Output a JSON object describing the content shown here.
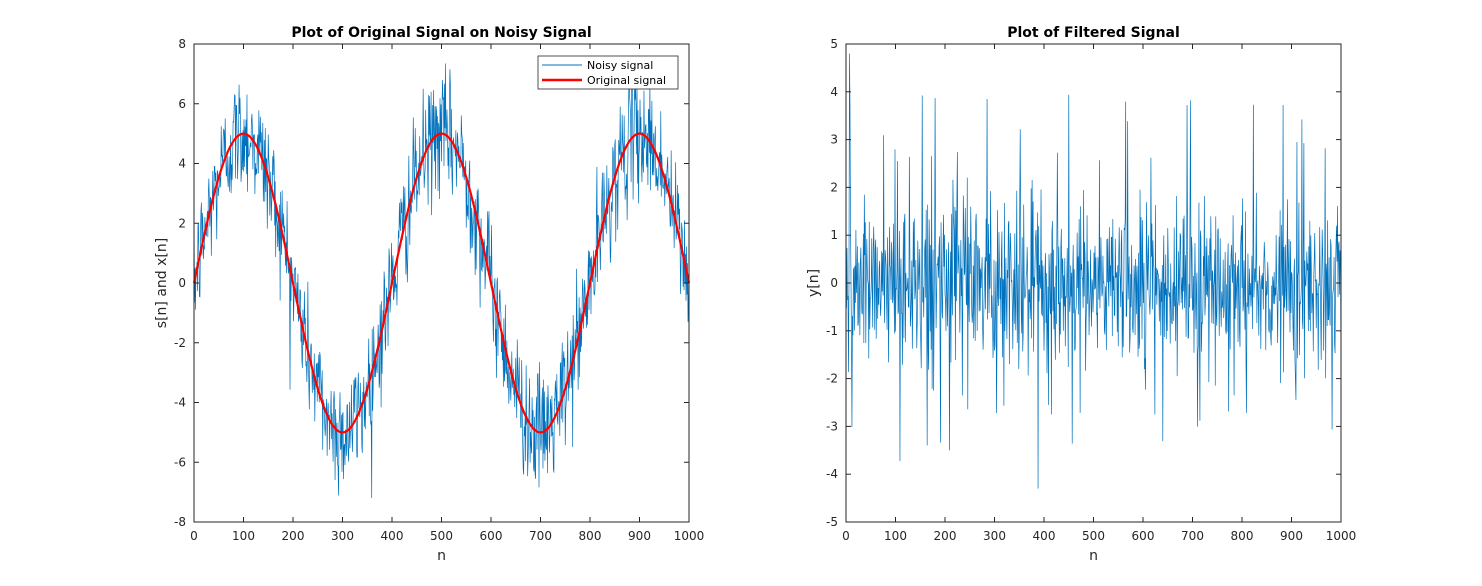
{
  "chart_data": [
    {
      "type": "line",
      "title": "Plot of Original Signal on Noisy Signal",
      "xlabel": "n",
      "ylabel": "s[n] and x[n]",
      "xlim": [
        0,
        1000
      ],
      "ylim": [
        -8,
        8
      ],
      "xticks": [
        0,
        100,
        200,
        300,
        400,
        500,
        600,
        700,
        800,
        900,
        1000
      ],
      "yticks": [
        -8,
        -6,
        -4,
        -2,
        0,
        2,
        4,
        6,
        8
      ],
      "legend_position": "top-right",
      "series": [
        {
          "name": "Noisy signal",
          "color": "#0072BD",
          "description": "sinusoid of amplitude 5 and period 400 samples with added noise of roughly +/-2.5",
          "amplitude": 5,
          "period": 400,
          "noise_spread": 2.5,
          "n_points": 1001
        },
        {
          "name": "Original signal",
          "color": "#FF0000",
          "amplitude": 5,
          "period": 400,
          "n_points": 1001
        }
      ]
    },
    {
      "type": "line",
      "title": "Plot of Filtered Signal",
      "xlabel": "n",
      "ylabel": "y[n]",
      "xlim": [
        0,
        1000
      ],
      "ylim": [
        -5,
        5
      ],
      "xticks": [
        0,
        100,
        200,
        300,
        400,
        500,
        600,
        700,
        800,
        900,
        1000
      ],
      "yticks": [
        -5,
        -4,
        -3,
        -2,
        -1,
        0,
        1,
        2,
        3,
        4,
        5
      ],
      "series": [
        {
          "color": "#0072BD",
          "description": "zero-mean noise mostly within +/-1.5 with spikes up to about +4.8 and down to about -4.3",
          "noise_spread": 1.6,
          "max_value": 4.8,
          "min_value": -4.3,
          "n_points": 1001
        }
      ]
    }
  ]
}
